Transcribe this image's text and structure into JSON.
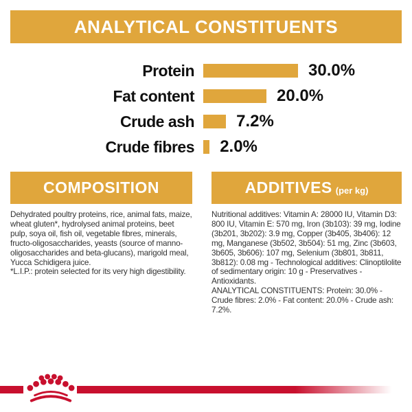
{
  "page": {
    "background": "#ffffff",
    "accent_gold": "#e0a63c",
    "accent_red": "#c8102e",
    "text_color": "#333333"
  },
  "chart_data": {
    "type": "bar",
    "orientation": "horizontal",
    "title": "ANALYTICAL CONSTITUENTS",
    "categories": [
      "Protein",
      "Fat content",
      "Crude ash",
      "Crude fibres"
    ],
    "values": [
      30.0,
      20.0,
      7.2,
      2.0
    ],
    "value_labels": [
      "30.0%",
      "20.0%",
      "7.2%",
      "2.0%"
    ],
    "unit": "%",
    "xlim": [
      0,
      30
    ],
    "bar_color": "#e0a63c",
    "grid": false,
    "legend": false
  },
  "composition": {
    "title": "COMPOSITION",
    "text": "Dehydrated poultry proteins, rice, animal fats, maize, wheat gluten*, hydrolysed animal proteins, beet pulp, soya oil, fish oil, vegetable fibres, minerals, fructo-oligosaccharides, yeasts (source of manno-oligosaccharides and beta-glucans), marigold meal, Yucca Schidigera juice.",
    "footnote": "*L.I.P.: protein selected for its very high digestibility."
  },
  "additives": {
    "title": "ADDITIVES",
    "title_suffix": "(per kg)",
    "text": "Nutritional additives: Vitamin A: 28000 IU, Vitamin D3: 800 IU, Vitamin E: 570 mg, Iron (3b103): 39 mg, Iodine (3b201, 3b202): 3.9 mg, Copper (3b405, 3b406): 12 mg, Manganese (3b502, 3b504): 51 mg, Zinc (3b603, 3b605, 3b606): 107 mg, Selenium (3b801, 3b811, 3b812): 0.08 mg - Technological additives: Clinoptilolite of sedimentary origin: 10 g - Preservatives - Antioxidants.",
    "analytical": "ANALYTICAL CONSTITUENTS: Protein: 30.0% - Crude fibres: 2.0% - Fat content: 20.0% - Crude ash: 7.2%."
  },
  "footer": {
    "brand_icon": "royal-canin-crown-icon"
  }
}
